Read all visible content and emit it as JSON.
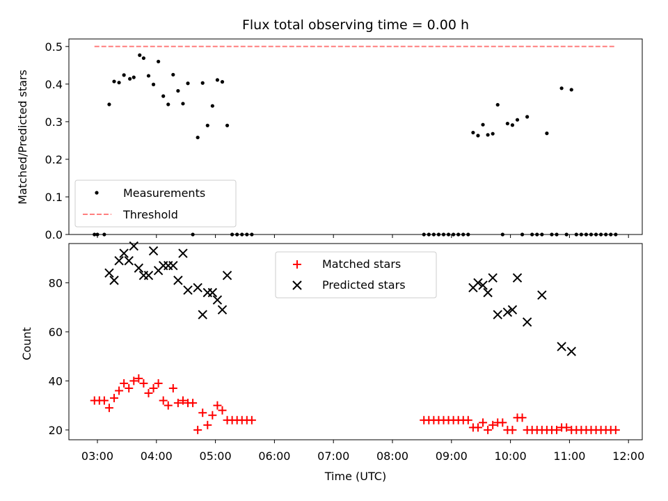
{
  "chart_data": [
    {
      "type": "scatter",
      "title": "Flux total observing time = 0.00 h",
      "ylabel": "Matched/Predicted stars",
      "xlabel": "",
      "xlim": [
        "02:31",
        "12:14"
      ],
      "ylim": [
        0,
        0.52
      ],
      "yticks": [
        "0.0",
        "0.1",
        "0.2",
        "0.3",
        "0.4",
        "0.5"
      ],
      "legend_position": "lower-left",
      "threshold": {
        "name": "Threshold",
        "y": 0.5,
        "x": [
          "02:57",
          "11:47"
        ],
        "color": "#ff7f7f",
        "style": "dashed"
      },
      "series": [
        {
          "name": "Measurements",
          "color": "#000000",
          "marker": "dot",
          "points": [
            [
              "02:57",
              0.0
            ],
            [
              "03:00",
              0.0
            ],
            [
              "03:07",
              0.0
            ],
            [
              "03:12",
              0.346
            ],
            [
              "03:17",
              0.407
            ],
            [
              "03:22",
              0.404
            ],
            [
              "03:27",
              0.424
            ],
            [
              "03:33",
              0.414
            ],
            [
              "03:37",
              0.418
            ],
            [
              "03:43",
              0.477
            ],
            [
              "03:47",
              0.469
            ],
            [
              "03:52",
              0.422
            ],
            [
              "03:57",
              0.399
            ],
            [
              "04:02",
              0.46
            ],
            [
              "04:07",
              0.368
            ],
            [
              "04:12",
              0.346
            ],
            [
              "04:17",
              0.425
            ],
            [
              "04:22",
              0.382
            ],
            [
              "04:27",
              0.348
            ],
            [
              "04:32",
              0.402
            ],
            [
              "04:37",
              0.0
            ],
            [
              "04:42",
              0.258
            ],
            [
              "04:47",
              0.403
            ],
            [
              "04:52",
              0.29
            ],
            [
              "04:57",
              0.342
            ],
            [
              "05:02",
              0.411
            ],
            [
              "05:07",
              0.406
            ],
            [
              "05:12",
              0.29
            ],
            [
              "05:17",
              0.0
            ],
            [
              "05:22",
              0.0
            ],
            [
              "05:27",
              0.0
            ],
            [
              "05:32",
              0.0
            ],
            [
              "05:37",
              0.0
            ],
            [
              "08:32",
              0.0
            ],
            [
              "08:37",
              0.0
            ],
            [
              "08:42",
              0.0
            ],
            [
              "08:47",
              0.0
            ],
            [
              "08:52",
              0.0
            ],
            [
              "08:57",
              0.0
            ],
            [
              "09:02",
              0.0
            ],
            [
              "09:07",
              0.0
            ],
            [
              "09:12",
              0.0
            ],
            [
              "09:17",
              0.0
            ],
            [
              "09:22",
              0.271
            ],
            [
              "09:27",
              0.263
            ],
            [
              "09:32",
              0.292
            ],
            [
              "09:37",
              0.265
            ],
            [
              "09:42",
              0.268
            ],
            [
              "09:47",
              0.345
            ],
            [
              "09:52",
              0.0
            ],
            [
              "09:57",
              0.295
            ],
            [
              "10:02",
              0.291
            ],
            [
              "10:07",
              0.305
            ],
            [
              "10:12",
              0.0
            ],
            [
              "10:17",
              0.313
            ],
            [
              "10:22",
              0.0
            ],
            [
              "10:27",
              0.0
            ],
            [
              "10:32",
              0.0
            ],
            [
              "10:37",
              0.269
            ],
            [
              "10:42",
              0.0
            ],
            [
              "10:47",
              0.0
            ],
            [
              "10:52",
              0.389
            ],
            [
              "10:57",
              0.0
            ],
            [
              "11:02",
              0.385
            ],
            [
              "11:07",
              0.0
            ],
            [
              "11:12",
              0.0
            ],
            [
              "11:17",
              0.0
            ],
            [
              "11:22",
              0.0
            ],
            [
              "11:27",
              0.0
            ],
            [
              "11:32",
              0.0
            ],
            [
              "11:37",
              0.0
            ],
            [
              "11:42",
              0.0
            ],
            [
              "11:47",
              0.0
            ]
          ]
        }
      ]
    },
    {
      "type": "scatter",
      "title": "",
      "xlabel": "Time (UTC)",
      "ylabel": "Count",
      "xlim": [
        "02:31",
        "12:14"
      ],
      "ylim": [
        16,
        96
      ],
      "yticks": [
        "20",
        "40",
        "60",
        "80"
      ],
      "xticks": [
        "03:00",
        "04:00",
        "05:00",
        "06:00",
        "07:00",
        "08:00",
        "09:00",
        "10:00",
        "11:00",
        "12:00"
      ],
      "legend_position": "upper-center",
      "series": [
        {
          "name": "Matched stars",
          "color": "#ff0000",
          "marker": "plus",
          "points": [
            [
              "02:57",
              32
            ],
            [
              "03:02",
              32
            ],
            [
              "03:07",
              32
            ],
            [
              "03:12",
              29
            ],
            [
              "03:17",
              33
            ],
            [
              "03:22",
              36
            ],
            [
              "03:27",
              39
            ],
            [
              "03:32",
              37
            ],
            [
              "03:37",
              40
            ],
            [
              "03:42",
              41
            ],
            [
              "03:47",
              39
            ],
            [
              "03:52",
              35
            ],
            [
              "03:57",
              37
            ],
            [
              "04:02",
              39
            ],
            [
              "04:07",
              32
            ],
            [
              "04:12",
              30
            ],
            [
              "04:17",
              37
            ],
            [
              "04:22",
              31
            ],
            [
              "04:27",
              32
            ],
            [
              "04:32",
              31
            ],
            [
              "04:37",
              31
            ],
            [
              "04:42",
              20
            ],
            [
              "04:47",
              27
            ],
            [
              "04:52",
              22
            ],
            [
              "04:57",
              26
            ],
            [
              "05:02",
              30
            ],
            [
              "05:07",
              28
            ],
            [
              "05:12",
              24
            ],
            [
              "05:17",
              24
            ],
            [
              "05:22",
              24
            ],
            [
              "05:27",
              24
            ],
            [
              "05:32",
              24
            ],
            [
              "05:37",
              24
            ],
            [
              "08:32",
              24
            ],
            [
              "08:37",
              24
            ],
            [
              "08:42",
              24
            ],
            [
              "08:47",
              24
            ],
            [
              "08:52",
              24
            ],
            [
              "08:57",
              24
            ],
            [
              "09:02",
              24
            ],
            [
              "09:07",
              24
            ],
            [
              "09:12",
              24
            ],
            [
              "09:17",
              24
            ],
            [
              "09:22",
              21
            ],
            [
              "09:27",
              21
            ],
            [
              "09:32",
              23
            ],
            [
              "09:37",
              20
            ],
            [
              "09:42",
              22
            ],
            [
              "09:47",
              23
            ],
            [
              "09:52",
              23
            ],
            [
              "09:57",
              20
            ],
            [
              "10:02",
              20
            ],
            [
              "10:07",
              25
            ],
            [
              "10:12",
              25
            ],
            [
              "10:17",
              20
            ],
            [
              "10:22",
              20
            ],
            [
              "10:27",
              20
            ],
            [
              "10:32",
              20
            ],
            [
              "10:37",
              20
            ],
            [
              "10:42",
              20
            ],
            [
              "10:47",
              20
            ],
            [
              "10:52",
              21
            ],
            [
              "10:57",
              21
            ],
            [
              "11:02",
              20
            ],
            [
              "11:07",
              20
            ],
            [
              "11:12",
              20
            ],
            [
              "11:17",
              20
            ],
            [
              "11:22",
              20
            ],
            [
              "11:27",
              20
            ],
            [
              "11:32",
              20
            ],
            [
              "11:37",
              20
            ],
            [
              "11:42",
              20
            ],
            [
              "11:47",
              20
            ]
          ]
        },
        {
          "name": "Predicted stars",
          "color": "#000000",
          "marker": "x",
          "points": [
            [
              "03:12",
              84
            ],
            [
              "03:17",
              81
            ],
            [
              "03:22",
              89
            ],
            [
              "03:27",
              92
            ],
            [
              "03:32",
              89
            ],
            [
              "03:37",
              95
            ],
            [
              "03:42",
              86
            ],
            [
              "03:47",
              83
            ],
            [
              "03:52",
              83
            ],
            [
              "03:57",
              93
            ],
            [
              "04:02",
              85
            ],
            [
              "04:07",
              87
            ],
            [
              "04:12",
              87
            ],
            [
              "04:17",
              87
            ],
            [
              "04:22",
              81
            ],
            [
              "04:27",
              92
            ],
            [
              "04:32",
              77
            ],
            [
              "04:42",
              78
            ],
            [
              "04:47",
              67
            ],
            [
              "04:52",
              76
            ],
            [
              "04:57",
              76
            ],
            [
              "05:02",
              73
            ],
            [
              "05:07",
              69
            ],
            [
              "05:12",
              83
            ],
            [
              "09:22",
              78
            ],
            [
              "09:27",
              80
            ],
            [
              "09:32",
              79
            ],
            [
              "09:37",
              76
            ],
            [
              "09:42",
              82
            ],
            [
              "09:47",
              67
            ],
            [
              "09:57",
              68
            ],
            [
              "10:02",
              69
            ],
            [
              "10:07",
              82
            ],
            [
              "10:17",
              64
            ],
            [
              "10:32",
              75
            ],
            [
              "10:52",
              54
            ],
            [
              "11:02",
              52
            ]
          ]
        }
      ]
    }
  ]
}
